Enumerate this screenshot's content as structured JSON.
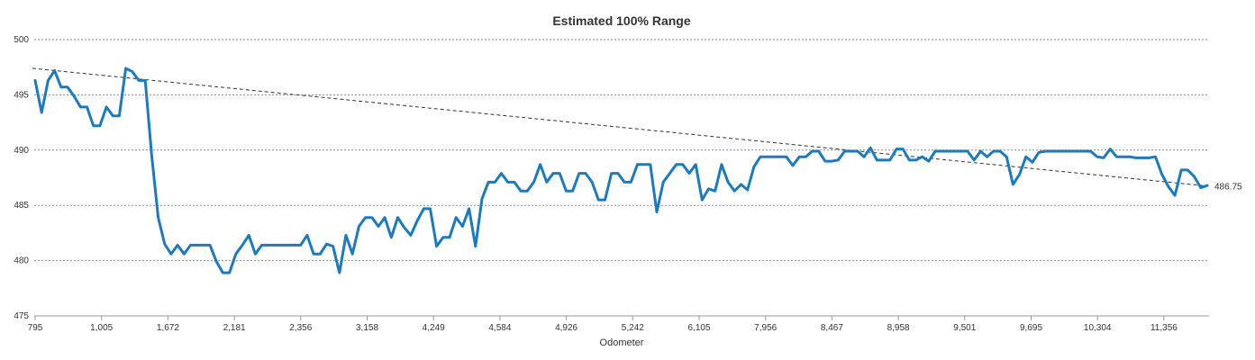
{
  "chart_data": {
    "type": "line",
    "title": "Estimated 100% Range",
    "xlabel": "Odometer",
    "ylabel": "",
    "ylim": [
      475,
      500
    ],
    "yticks": [
      475,
      480,
      485,
      490,
      495,
      500
    ],
    "grid": true,
    "legend": "none",
    "x_tick_labels": [
      "795",
      "1,005",
      "1,672",
      "2,181",
      "2,356",
      "3,158",
      "4,249",
      "4,584",
      "4,926",
      "5,242",
      "6,105",
      "7,956",
      "8,467",
      "8,958",
      "9,501",
      "9,695",
      "10,304",
      "11,356"
    ],
    "end_label": "486.75",
    "series": [
      {
        "values": [
          496.3,
          493.4,
          496.3,
          497.2,
          495.7,
          495.7,
          494.9,
          493.9,
          493.9,
          492.2,
          492.2,
          493.9,
          493.1,
          493.1,
          497.4,
          497.1,
          496.3,
          496.3,
          489.5,
          483.9,
          481.5,
          480.6,
          481.4,
          480.6,
          481.4,
          481.4,
          481.4,
          481.4,
          479.9,
          478.9,
          478.9,
          480.6,
          481.4,
          482.3,
          480.6,
          481.4,
          481.4,
          481.4,
          481.4,
          481.4,
          481.4,
          481.4,
          482.3,
          480.6,
          480.6,
          481.5,
          481.3,
          478.9,
          482.3,
          480.6,
          483.1,
          483.9,
          483.9,
          483.1,
          483.9,
          482.1,
          483.9,
          483.0,
          482.3,
          483.6,
          484.7,
          484.7,
          481.3,
          482.1,
          482.1,
          483.9,
          483.1,
          484.7,
          481.3,
          485.6,
          487.1,
          487.1,
          487.9,
          487.1,
          487.1,
          486.3,
          486.3,
          487.1,
          488.7,
          487.1,
          487.9,
          487.9,
          486.3,
          486.3,
          487.9,
          487.9,
          487.1,
          485.5,
          485.5,
          487.9,
          487.9,
          487.1,
          487.1,
          488.7,
          488.7,
          488.7,
          484.4,
          487.1,
          487.9,
          488.7,
          488.7,
          487.9,
          488.7,
          485.5,
          486.5,
          486.3,
          488.7,
          487.1,
          486.3,
          486.9,
          486.4,
          488.5,
          489.4,
          489.4,
          489.4,
          489.4,
          489.4,
          488.6,
          489.4,
          489.4,
          489.9,
          489.9,
          489.0,
          489.0,
          489.1,
          489.9,
          489.9,
          489.9,
          489.4,
          490.2,
          489.1,
          489.1,
          489.1,
          490.1,
          490.1,
          489.1,
          489.1,
          489.4,
          489.0,
          489.9,
          489.9,
          489.9,
          489.9,
          489.9,
          489.9,
          489.1,
          489.9,
          489.4,
          489.9,
          489.9,
          489.4,
          486.9,
          487.8,
          489.4,
          488.9,
          489.8,
          489.9,
          489.9,
          489.9,
          489.9,
          489.9,
          489.9,
          489.9,
          489.9,
          489.4,
          489.3,
          490.1,
          489.4,
          489.4,
          489.4,
          489.3,
          489.3,
          489.3,
          489.4,
          487.8,
          486.7,
          485.9,
          488.2,
          488.2,
          487.6,
          486.6,
          486.8
        ]
      }
    ],
    "trendline": {
      "start": 497.4,
      "end": 486.75
    }
  }
}
